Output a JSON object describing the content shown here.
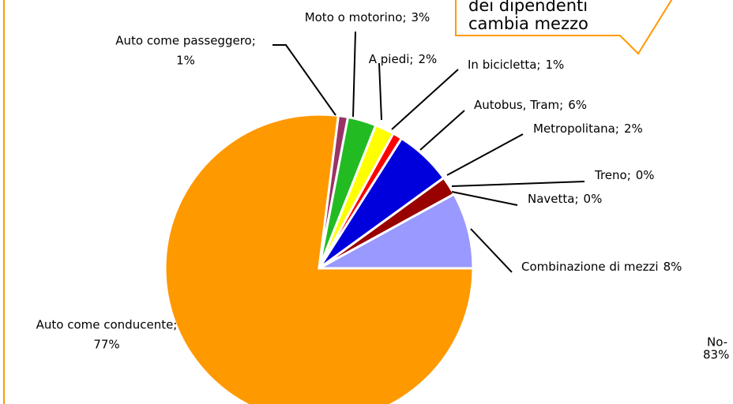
{
  "chart_data": {
    "type": "pie",
    "categories": [
      "Auto come conducente;",
      "Auto come passeggero;",
      "Moto o motorino;",
      "A piedi;",
      "In bicicletta;",
      "Autobus, Tram;",
      "Metropolitana;",
      "Treno;",
      "Navetta;",
      "Combinazione di  mezzi"
    ],
    "values": [
      77,
      1,
      3,
      2,
      1,
      6,
      2,
      0,
      0,
      8
    ],
    "value_labels": [
      "77%",
      "1%",
      "3%",
      "2%",
      "1%",
      "6%",
      "2%",
      "0%",
      "0%",
      "8%"
    ],
    "colors": [
      "#ff9900",
      "#993366",
      "#22bb22",
      "#ffff00",
      "#ff0000",
      "#0000dd",
      "#990000",
      "#ffffff",
      "#ffffff",
      "#9999ff"
    ],
    "annotations": [
      "dei dipendenti",
      "cambia mezzo",
      "No-",
      "83%"
    ]
  }
}
